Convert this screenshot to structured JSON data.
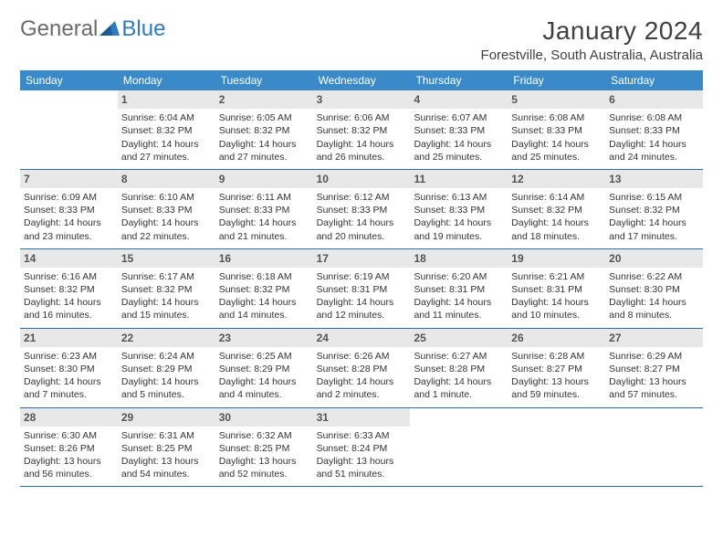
{
  "brand": {
    "word1": "General",
    "word2": "Blue"
  },
  "title": "January 2024",
  "location": "Forestville, South Australia, Australia",
  "weekdays": [
    "Sunday",
    "Monday",
    "Tuesday",
    "Wednesday",
    "Thursday",
    "Friday",
    "Saturday"
  ],
  "colors": {
    "header_bar": "#3a8ac9",
    "header_text": "#ffffff",
    "daynum_bg": "#e8e8e8",
    "week_divider": "#2f6fa8",
    "logo_gray": "#6b6b6b",
    "logo_blue": "#2f7bbf"
  },
  "weeks": [
    [
      {
        "n": "",
        "sr": "",
        "ss": "",
        "dl": ""
      },
      {
        "n": "1",
        "sr": "Sunrise: 6:04 AM",
        "ss": "Sunset: 8:32 PM",
        "dl": "Daylight: 14 hours and 27 minutes."
      },
      {
        "n": "2",
        "sr": "Sunrise: 6:05 AM",
        "ss": "Sunset: 8:32 PM",
        "dl": "Daylight: 14 hours and 27 minutes."
      },
      {
        "n": "3",
        "sr": "Sunrise: 6:06 AM",
        "ss": "Sunset: 8:32 PM",
        "dl": "Daylight: 14 hours and 26 minutes."
      },
      {
        "n": "4",
        "sr": "Sunrise: 6:07 AM",
        "ss": "Sunset: 8:33 PM",
        "dl": "Daylight: 14 hours and 25 minutes."
      },
      {
        "n": "5",
        "sr": "Sunrise: 6:08 AM",
        "ss": "Sunset: 8:33 PM",
        "dl": "Daylight: 14 hours and 25 minutes."
      },
      {
        "n": "6",
        "sr": "Sunrise: 6:08 AM",
        "ss": "Sunset: 8:33 PM",
        "dl": "Daylight: 14 hours and 24 minutes."
      }
    ],
    [
      {
        "n": "7",
        "sr": "Sunrise: 6:09 AM",
        "ss": "Sunset: 8:33 PM",
        "dl": "Daylight: 14 hours and 23 minutes."
      },
      {
        "n": "8",
        "sr": "Sunrise: 6:10 AM",
        "ss": "Sunset: 8:33 PM",
        "dl": "Daylight: 14 hours and 22 minutes."
      },
      {
        "n": "9",
        "sr": "Sunrise: 6:11 AM",
        "ss": "Sunset: 8:33 PM",
        "dl": "Daylight: 14 hours and 21 minutes."
      },
      {
        "n": "10",
        "sr": "Sunrise: 6:12 AM",
        "ss": "Sunset: 8:33 PM",
        "dl": "Daylight: 14 hours and 20 minutes."
      },
      {
        "n": "11",
        "sr": "Sunrise: 6:13 AM",
        "ss": "Sunset: 8:33 PM",
        "dl": "Daylight: 14 hours and 19 minutes."
      },
      {
        "n": "12",
        "sr": "Sunrise: 6:14 AM",
        "ss": "Sunset: 8:32 PM",
        "dl": "Daylight: 14 hours and 18 minutes."
      },
      {
        "n": "13",
        "sr": "Sunrise: 6:15 AM",
        "ss": "Sunset: 8:32 PM",
        "dl": "Daylight: 14 hours and 17 minutes."
      }
    ],
    [
      {
        "n": "14",
        "sr": "Sunrise: 6:16 AM",
        "ss": "Sunset: 8:32 PM",
        "dl": "Daylight: 14 hours and 16 minutes."
      },
      {
        "n": "15",
        "sr": "Sunrise: 6:17 AM",
        "ss": "Sunset: 8:32 PM",
        "dl": "Daylight: 14 hours and 15 minutes."
      },
      {
        "n": "16",
        "sr": "Sunrise: 6:18 AM",
        "ss": "Sunset: 8:32 PM",
        "dl": "Daylight: 14 hours and 14 minutes."
      },
      {
        "n": "17",
        "sr": "Sunrise: 6:19 AM",
        "ss": "Sunset: 8:31 PM",
        "dl": "Daylight: 14 hours and 12 minutes."
      },
      {
        "n": "18",
        "sr": "Sunrise: 6:20 AM",
        "ss": "Sunset: 8:31 PM",
        "dl": "Daylight: 14 hours and 11 minutes."
      },
      {
        "n": "19",
        "sr": "Sunrise: 6:21 AM",
        "ss": "Sunset: 8:31 PM",
        "dl": "Daylight: 14 hours and 10 minutes."
      },
      {
        "n": "20",
        "sr": "Sunrise: 6:22 AM",
        "ss": "Sunset: 8:30 PM",
        "dl": "Daylight: 14 hours and 8 minutes."
      }
    ],
    [
      {
        "n": "21",
        "sr": "Sunrise: 6:23 AM",
        "ss": "Sunset: 8:30 PM",
        "dl": "Daylight: 14 hours and 7 minutes."
      },
      {
        "n": "22",
        "sr": "Sunrise: 6:24 AM",
        "ss": "Sunset: 8:29 PM",
        "dl": "Daylight: 14 hours and 5 minutes."
      },
      {
        "n": "23",
        "sr": "Sunrise: 6:25 AM",
        "ss": "Sunset: 8:29 PM",
        "dl": "Daylight: 14 hours and 4 minutes."
      },
      {
        "n": "24",
        "sr": "Sunrise: 6:26 AM",
        "ss": "Sunset: 8:28 PM",
        "dl": "Daylight: 14 hours and 2 minutes."
      },
      {
        "n": "25",
        "sr": "Sunrise: 6:27 AM",
        "ss": "Sunset: 8:28 PM",
        "dl": "Daylight: 14 hours and 1 minute."
      },
      {
        "n": "26",
        "sr": "Sunrise: 6:28 AM",
        "ss": "Sunset: 8:27 PM",
        "dl": "Daylight: 13 hours and 59 minutes."
      },
      {
        "n": "27",
        "sr": "Sunrise: 6:29 AM",
        "ss": "Sunset: 8:27 PM",
        "dl": "Daylight: 13 hours and 57 minutes."
      }
    ],
    [
      {
        "n": "28",
        "sr": "Sunrise: 6:30 AM",
        "ss": "Sunset: 8:26 PM",
        "dl": "Daylight: 13 hours and 56 minutes."
      },
      {
        "n": "29",
        "sr": "Sunrise: 6:31 AM",
        "ss": "Sunset: 8:25 PM",
        "dl": "Daylight: 13 hours and 54 minutes."
      },
      {
        "n": "30",
        "sr": "Sunrise: 6:32 AM",
        "ss": "Sunset: 8:25 PM",
        "dl": "Daylight: 13 hours and 52 minutes."
      },
      {
        "n": "31",
        "sr": "Sunrise: 6:33 AM",
        "ss": "Sunset: 8:24 PM",
        "dl": "Daylight: 13 hours and 51 minutes."
      },
      {
        "n": "",
        "sr": "",
        "ss": "",
        "dl": ""
      },
      {
        "n": "",
        "sr": "",
        "ss": "",
        "dl": ""
      },
      {
        "n": "",
        "sr": "",
        "ss": "",
        "dl": ""
      }
    ]
  ]
}
